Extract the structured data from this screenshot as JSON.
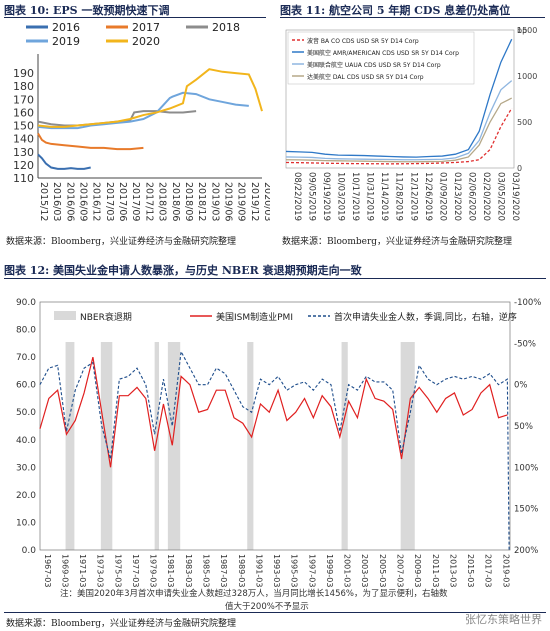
{
  "fig10": {
    "heading": "图表 10: EPS 一致预期快速下调",
    "source": "数据来源：Bloomberg，兴业证券经济与金融研究院整理"
  },
  "fig11": {
    "heading": "图表 11: 航空公司 5 年期 CDS 息差仍处高位",
    "source": "数据来源：Bloomberg，兴业证券经济与金融研究院整理"
  },
  "fig12": {
    "heading": "图表 12: 美国失业金申请人数暴涨，与历史 NBER 衰退期预期走向一致",
    "note1": "注：美国2020年3月首次申请失业金人数超过328万人，当月同比增长1456%，为了显示便利，右轴数",
    "note2": "值大于200%不予显示",
    "source": "数据来源：Bloomberg，兴业证券经济与金融研究院整理"
  },
  "watermark": "张忆东策略世界",
  "chart_data": [
    {
      "type": "line",
      "title": "",
      "ylim": [
        110,
        200
      ],
      "yticks": [
        110,
        120,
        130,
        140,
        150,
        160,
        170,
        180,
        190
      ],
      "xticks": [
        "2015/12",
        "2016/03",
        "2016/06",
        "2016/09",
        "2016/12",
        "2017/03",
        "2017/06",
        "2017/09",
        "2017/12",
        "2018/03",
        "2018/06",
        "2018/09",
        "2018/12",
        "2019/03",
        "2019/06",
        "2019/09",
        "2019/12",
        "2020/03"
      ],
      "series": [
        {
          "name": "2016",
          "color": "#3a6fb0",
          "x": [
            0,
            0.3,
            0.6,
            1,
            1.5,
            2,
            2.5,
            3,
            3.5,
            4
          ],
          "values": [
            128,
            125,
            121,
            118,
            117,
            117,
            117.5,
            117,
            117,
            118
          ]
        },
        {
          "name": "2017",
          "color": "#e87a2a",
          "x": [
            0,
            0.3,
            0.6,
            1,
            2,
            3,
            4,
            5,
            6,
            7,
            8
          ],
          "values": [
            144,
            139,
            137,
            136,
            135,
            134,
            133,
            133,
            132,
            132,
            133
          ]
        },
        {
          "name": "2018",
          "color": "#8c8c8c",
          "x": [
            0,
            1,
            2,
            3,
            4,
            5,
            6,
            7,
            7.3,
            8,
            9,
            10,
            11,
            12
          ],
          "values": [
            153,
            151,
            150,
            150,
            151,
            152,
            153,
            154,
            160,
            161,
            161,
            160,
            160,
            161
          ]
        },
        {
          "name": "2019",
          "color": "#6fa5dc",
          "x": [
            0,
            1,
            2,
            3,
            4,
            5,
            6,
            7,
            8,
            9,
            10,
            10.2,
            11,
            12,
            13,
            14,
            15,
            16
          ],
          "values": [
            149,
            148,
            148,
            148,
            150,
            151,
            152,
            153,
            155,
            160,
            171,
            172,
            175,
            174,
            170,
            168,
            166,
            165
          ]
        },
        {
          "name": "2020",
          "color": "#f2b51c",
          "x": [
            0,
            1,
            2,
            3,
            4,
            5,
            6,
            7,
            8,
            9,
            10,
            11,
            11.3,
            12,
            13,
            14,
            15,
            16,
            16.5,
            17
          ],
          "values": [
            150,
            149,
            149,
            150,
            151,
            152,
            153,
            155,
            158,
            160,
            163,
            167,
            180,
            185,
            193,
            191,
            190,
            189,
            178,
            161
          ]
        }
      ]
    },
    {
      "type": "line",
      "title": "",
      "ylabel": "bp",
      "ylim": [
        0,
        1500
      ],
      "yticks": [
        0,
        500,
        1000,
        1500
      ],
      "xticks": [
        "08/22/2019",
        "09/05/2019",
        "09/19/2019",
        "10/03/2019",
        "10/17/2019",
        "10/31/2019",
        "11/14/2019",
        "11/28/2019",
        "12/12/2019",
        "12/26/2019",
        "01/09/2020",
        "01/23/2020",
        "02/06/2020",
        "02/20/2020",
        "03/05/2020",
        "03/19/2020"
      ],
      "series": [
        {
          "name": "波音 BA CO CDS USD SR 5Y D14 Corp",
          "color": "#e03030",
          "dash": "3,2",
          "values": [
            60,
            58,
            55,
            52,
            50,
            48,
            47,
            46,
            45,
            46,
            48,
            50,
            55,
            60,
            70,
            90,
            200,
            450,
            650
          ]
        },
        {
          "name": "美国航空 AMR/AMERICAN CDS USD SR 5Y D14 Corp",
          "color": "#2e78c7",
          "values": [
            180,
            175,
            170,
            150,
            140,
            138,
            135,
            130,
            125,
            120,
            118,
            125,
            130,
            150,
            200,
            400,
            800,
            1150,
            1400
          ]
        },
        {
          "name": "美国联合航空 UAUA CDS USD SR 5Y D14 Corp",
          "color": "#8fb6e0",
          "values": [
            120,
            118,
            115,
            105,
            100,
            98,
            96,
            94,
            92,
            90,
            90,
            92,
            95,
            110,
            160,
            300,
            600,
            850,
            950
          ]
        },
        {
          "name": "达美航空 DAL CDS USD SR 5Y D14 Corp",
          "color": "#b5a889",
          "values": [
            90,
            88,
            85,
            80,
            78,
            76,
            74,
            72,
            70,
            68,
            68,
            70,
            72,
            85,
            120,
            250,
            500,
            700,
            760
          ]
        }
      ]
    },
    {
      "type": "line",
      "title": "",
      "ylim": [
        0,
        90
      ],
      "yticks": [
        0,
        10,
        20,
        30,
        40,
        50,
        60,
        70,
        80,
        90
      ],
      "y2ticks": [
        "-100%",
        "-50%",
        "0%",
        "50%",
        "100%",
        "150%",
        "200%"
      ],
      "xticks": [
        "1967-03",
        "1969-03",
        "1971-03",
        "1973-03",
        "1975-03",
        "1977-03",
        "1979-03",
        "1981-03",
        "1983-03",
        "1985-03",
        "1987-03",
        "1989-03",
        "1991-03",
        "1993-03",
        "1995-03",
        "1997-03",
        "1999-03",
        "2001-03",
        "2003-03",
        "2005-03",
        "2007-03",
        "2009-03",
        "2011-03",
        "2013-03",
        "2015-03",
        "2017-03",
        "2019-03"
      ],
      "recessions": [
        [
          1969.9,
          1970.9
        ],
        [
          1973.9,
          1975.2
        ],
        [
          1980.0,
          1980.5
        ],
        [
          1981.5,
          1982.9
        ],
        [
          1990.5,
          1991.2
        ],
        [
          2001.2,
          2001.9
        ],
        [
          2007.9,
          2009.5
        ]
      ],
      "series": [
        {
          "name": "NBER衰退期",
          "color": "#d9d9d9"
        },
        {
          "name": "美国ISM制造业PMI",
          "color": "#e02020",
          "points": [
            [
              1967,
              44
            ],
            [
              1968,
              55
            ],
            [
              1969,
              58
            ],
            [
              1970,
              42
            ],
            [
              1971,
              47
            ],
            [
              1972,
              57
            ],
            [
              1973,
              70
            ],
            [
              1974,
              50
            ],
            [
              1975,
              30
            ],
            [
              1976,
              56
            ],
            [
              1977,
              56
            ],
            [
              1978,
              59
            ],
            [
              1979,
              55
            ],
            [
              1980,
              36
            ],
            [
              1981,
              53
            ],
            [
              1982,
              38
            ],
            [
              1983,
              63
            ],
            [
              1984,
              60
            ],
            [
              1985,
              50
            ],
            [
              1986,
              51
            ],
            [
              1987,
              58
            ],
            [
              1988,
              58
            ],
            [
              1989,
              48
            ],
            [
              1990,
              46
            ],
            [
              1991,
              41
            ],
            [
              1992,
              53
            ],
            [
              1993,
              50
            ],
            [
              1994,
              58
            ],
            [
              1995,
              47
            ],
            [
              1996,
              50
            ],
            [
              1997,
              55
            ],
            [
              1998,
              48
            ],
            [
              1999,
              56
            ],
            [
              2000,
              52
            ],
            [
              2001,
              41
            ],
            [
              2002,
              54
            ],
            [
              2003,
              48
            ],
            [
              2004,
              62
            ],
            [
              2005,
              55
            ],
            [
              2006,
              54
            ],
            [
              2007,
              51
            ],
            [
              2008,
              33
            ],
            [
              2009,
              55
            ],
            [
              2010,
              59
            ],
            [
              2011,
              55
            ],
            [
              2012,
              50
            ],
            [
              2013,
              55
            ],
            [
              2014,
              57
            ],
            [
              2015,
              49
            ],
            [
              2016,
              51
            ],
            [
              2017,
              57
            ],
            [
              2018,
              60
            ],
            [
              2019,
              48
            ],
            [
              2020,
              49
            ]
          ]
        },
        {
          "name": "首次申请失业金人数，季调,同比，右轴，逆序",
          "color": "#1f4e8c",
          "dash": "3,2",
          "points": [
            [
              1967,
              60
            ],
            [
              1968,
              66
            ],
            [
              1969,
              67
            ],
            [
              1970,
              43
            ],
            [
              1971,
              58
            ],
            [
              1972,
              66
            ],
            [
              1973,
              68
            ],
            [
              1974,
              45
            ],
            [
              1975,
              33
            ],
            [
              1976,
              62
            ],
            [
              1977,
              63
            ],
            [
              1978,
              66
            ],
            [
              1979,
              60
            ],
            [
              1980,
              42
            ],
            [
              1981,
              62
            ],
            [
              1982,
              45
            ],
            [
              1983,
              72
            ],
            [
              1984,
              66
            ],
            [
              1985,
              60
            ],
            [
              1986,
              60
            ],
            [
              1987,
              66
            ],
            [
              1988,
              64
            ],
            [
              1989,
              58
            ],
            [
              1990,
              52
            ],
            [
              1991,
              50
            ],
            [
              1992,
              62
            ],
            [
              1993,
              60
            ],
            [
              1994,
              63
            ],
            [
              1995,
              58
            ],
            [
              1996,
              60
            ],
            [
              1997,
              61
            ],
            [
              1998,
              58
            ],
            [
              1999,
              62
            ],
            [
              2000,
              60
            ],
            [
              2001,
              43
            ],
            [
              2002,
              60
            ],
            [
              2003,
              58
            ],
            [
              2004,
              63
            ],
            [
              2005,
              61
            ],
            [
              2006,
              61
            ],
            [
              2007,
              58
            ],
            [
              2008,
              35
            ],
            [
              2009,
              50
            ],
            [
              2010,
              67
            ],
            [
              2011,
              62
            ],
            [
              2012,
              60
            ],
            [
              2013,
              62
            ],
            [
              2014,
              63
            ],
            [
              2015,
              62
            ],
            [
              2016,
              63
            ],
            [
              2017,
              62
            ],
            [
              2018,
              64
            ],
            [
              2019,
              60
            ],
            [
              2020,
              62
            ],
            [
              2020.2,
              0
            ]
          ]
        }
      ]
    }
  ]
}
